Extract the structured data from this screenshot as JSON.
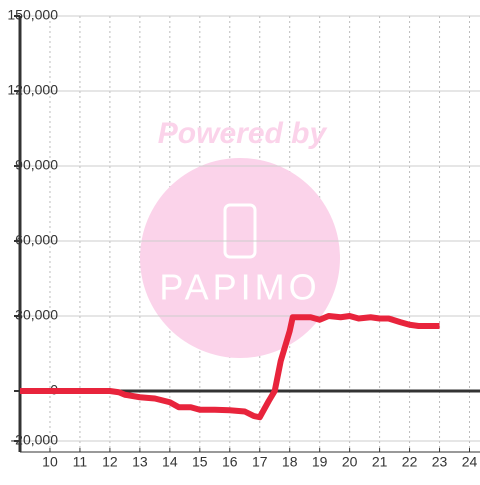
{
  "chart_data": {
    "type": "line",
    "watermark": {
      "line1": "Powered by",
      "line2": "PAPIMO"
    },
    "x": [
      9,
      12,
      12.3,
      12.5,
      13,
      13.5,
      14,
      14.3,
      14.7,
      15,
      15.5,
      16,
      16.5,
      16.8,
      17,
      17.3,
      17.5,
      17.7,
      18,
      18.1,
      18.7,
      19,
      19.3,
      19.7,
      20,
      20.3,
      20.7,
      21,
      21.3,
      21.7,
      22,
      22.3,
      23
    ],
    "series": [
      {
        "color": "#e8243c",
        "values": [
          0,
          0,
          -500,
          -1500,
          -2500,
          -3000,
          -4500,
          -6500,
          -6500,
          -7500,
          -7500,
          -7700,
          -8200,
          -10000,
          -10500,
          -4000,
          0,
          12000,
          24000,
          29500,
          29500,
          28500,
          30000,
          29500,
          30000,
          29000,
          29500,
          29000,
          29000,
          27500,
          26500,
          26000,
          26000
        ]
      }
    ],
    "xlim": [
      9,
      24.35
    ],
    "xticks": [
      10,
      11,
      12,
      13,
      14,
      15,
      16,
      17,
      18,
      19,
      20,
      21,
      22,
      23,
      24
    ],
    "ylim": [
      -24400,
      150000
    ],
    "yticks": [
      {
        "value": -20000,
        "label": "-20,000"
      },
      0,
      {
        "value": 30000,
        "label": "30,000"
      },
      {
        "value": 60000,
        "label": "60,000"
      },
      {
        "value": 90000,
        "label": "90,000"
      },
      {
        "value": 120000,
        "label": "120,000"
      },
      {
        "value": 150000,
        "label": "150,000"
      }
    ],
    "grid": true
  }
}
